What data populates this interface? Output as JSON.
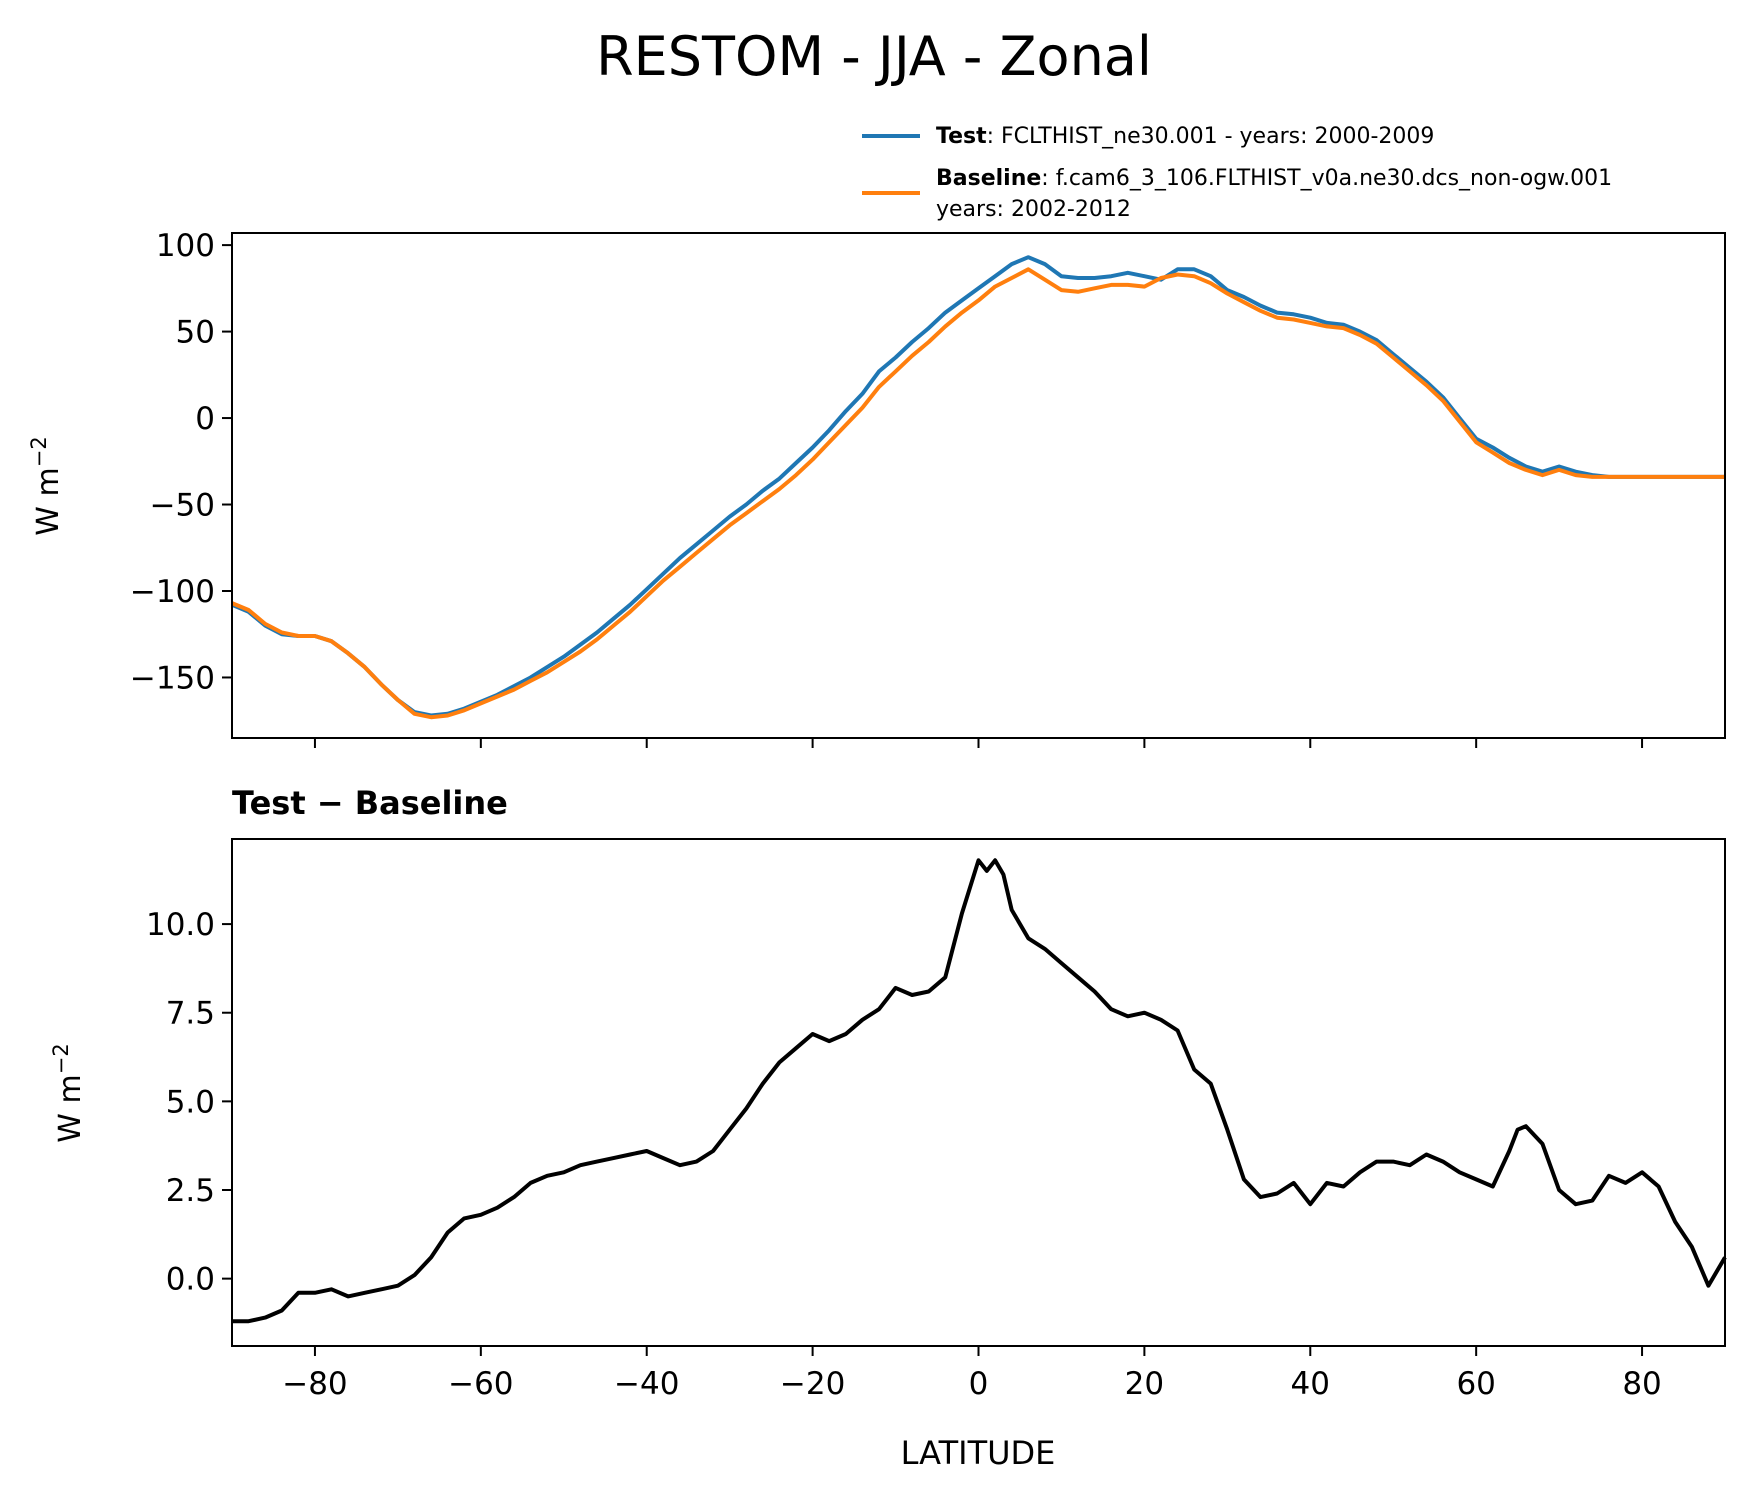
{
  "title": "RESTOM - JJA - Zonal",
  "chart_data": [
    {
      "type": "line",
      "ylabel": "W m",
      "ylabel_sup": "−2",
      "xlim": [
        -90,
        90
      ],
      "ylim": [
        -185,
        107
      ],
      "yticks": [
        100,
        50,
        0,
        -50,
        -100,
        -150
      ],
      "ytick_labels": [
        "100",
        "50",
        "0",
        "−50",
        "−100",
        "−150"
      ],
      "xticks": [
        -80,
        -60,
        -40,
        -20,
        0,
        20,
        40,
        60,
        80
      ],
      "legend": [
        {
          "bold": "Test",
          "text": ": FCLTHIST_ne30.001 - years: 2000-2009",
          "text2": "",
          "color": "#1f77b4"
        },
        {
          "bold": "Baseline",
          "text": ": f.cam6_3_106.FLTHIST_v0a.ne30.dcs_non-ogw.001",
          "text2": "years: 2002-2012",
          "color": "#ff7f0e"
        }
      ],
      "x": [
        -90,
        -88,
        -86,
        -84,
        -82,
        -80,
        -78,
        -76,
        -74,
        -72,
        -70,
        -68,
        -66,
        -64,
        -62,
        -60,
        -58,
        -56,
        -54,
        -52,
        -50,
        -48,
        -46,
        -44,
        -42,
        -40,
        -38,
        -36,
        -34,
        -32,
        -30,
        -28,
        -26,
        -24,
        -22,
        -20,
        -18,
        -16,
        -14,
        -12,
        -10,
        -8,
        -6,
        -4,
        -2,
        0,
        2,
        4,
        6,
        8,
        10,
        12,
        14,
        16,
        18,
        20,
        22,
        24,
        26,
        28,
        30,
        32,
        34,
        36,
        38,
        40,
        42,
        44,
        46,
        48,
        50,
        52,
        54,
        56,
        58,
        60,
        62,
        64,
        66,
        68,
        70,
        72,
        74,
        76,
        78,
        80,
        82,
        84,
        86,
        88,
        90
      ],
      "series": [
        {
          "name": "Test",
          "color": "#1f77b4",
          "values": [
            -108,
            -112,
            -120,
            -125,
            -126,
            -126,
            -129,
            -136,
            -144,
            -154,
            -163,
            -170,
            -172,
            -171,
            -168,
            -164,
            -160,
            -155,
            -150,
            -144,
            -138,
            -131,
            -124,
            -116,
            -108,
            -99,
            -90,
            -81,
            -73,
            -65,
            -57,
            -50,
            -42,
            -35,
            -26,
            -17,
            -7,
            4,
            14,
            27,
            35,
            44,
            52,
            61,
            68,
            75,
            82,
            89,
            93,
            89,
            82,
            81,
            81,
            82,
            84,
            82,
            80,
            86,
            86,
            82,
            74,
            70,
            65,
            61,
            60,
            58,
            55,
            54,
            50,
            45,
            37,
            29,
            21,
            12,
            0,
            -12,
            -17,
            -23,
            -28,
            -31,
            -28,
            -31,
            -33,
            -34,
            -34,
            -34,
            -34,
            -34,
            -34,
            -34,
            -34
          ]
        },
        {
          "name": "Baseline",
          "color": "#ff7f0e",
          "values": [
            -107,
            -111,
            -119,
            -124,
            -126,
            -126,
            -129,
            -136,
            -144,
            -154,
            -163,
            -171,
            -173,
            -172,
            -169,
            -165,
            -161,
            -157,
            -152,
            -147,
            -141,
            -135,
            -128,
            -120,
            -112,
            -103,
            -94,
            -86,
            -78,
            -70,
            -62,
            -55,
            -48,
            -41,
            -33,
            -24,
            -14,
            -4,
            6,
            18,
            27,
            36,
            44,
            53,
            61,
            68,
            76,
            81,
            86,
            80,
            74,
            73,
            75,
            77,
            77,
            76,
            81,
            83,
            82,
            78,
            72,
            67,
            62,
            58,
            57,
            55,
            53,
            52,
            48,
            43,
            35,
            27,
            19,
            10,
            -2,
            -14,
            -20,
            -26,
            -30,
            -33,
            -30,
            -33,
            -34,
            -34,
            -34,
            -34,
            -34,
            -34,
            -34,
            -34,
            -34
          ]
        }
      ]
    },
    {
      "type": "line",
      "title": "Test − Baseline",
      "ylabel": "W m",
      "ylabel_sup": "−2",
      "xlabel": "LATITUDE",
      "xlim": [
        -90,
        90
      ],
      "ylim": [
        -1.9,
        12.4
      ],
      "yticks": [
        10.0,
        7.5,
        5.0,
        2.5,
        0.0
      ],
      "ytick_labels": [
        "10.0",
        "7.5",
        "5.0",
        "2.5",
        "0.0"
      ],
      "xticks": [
        -80,
        -60,
        -40,
        -20,
        0,
        20,
        40,
        60,
        80
      ],
      "xtick_labels": [
        "−80",
        "−60",
        "−40",
        "−20",
        "0",
        "20",
        "40",
        "60",
        "80"
      ],
      "series": [
        {
          "name": "Test − Baseline",
          "color": "#000000",
          "x": [
            -90,
            -88,
            -86,
            -84,
            -82,
            -80,
            -78,
            -76,
            -74,
            -72,
            -70,
            -68,
            -66,
            -64,
            -62,
            -60,
            -58,
            -56,
            -54,
            -52,
            -50,
            -48,
            -46,
            -44,
            -42,
            -40,
            -38,
            -36,
            -34,
            -32,
            -30,
            -28,
            -26,
            -24,
            -22,
            -20,
            -18,
            -16,
            -14,
            -12,
            -10,
            -8,
            -6,
            -4,
            -2,
            0,
            1,
            2,
            3,
            4,
            6,
            8,
            10,
            12,
            14,
            16,
            18,
            20,
            22,
            24,
            26,
            28,
            30,
            32,
            34,
            36,
            38,
            40,
            42,
            44,
            46,
            48,
            50,
            52,
            54,
            56,
            58,
            60,
            62,
            64,
            65,
            66,
            68,
            70,
            72,
            74,
            76,
            78,
            80,
            82,
            84,
            86,
            88,
            90
          ],
          "values": [
            -1.2,
            -1.2,
            -1.1,
            -0.9,
            -0.4,
            -0.4,
            -0.3,
            -0.5,
            -0.4,
            -0.3,
            -0.2,
            0.1,
            0.6,
            1.3,
            1.7,
            1.8,
            2.0,
            2.3,
            2.7,
            2.9,
            3.0,
            3.2,
            3.3,
            3.4,
            3.5,
            3.6,
            3.4,
            3.2,
            3.3,
            3.6,
            4.2,
            4.8,
            5.5,
            6.1,
            6.5,
            6.9,
            6.7,
            6.9,
            7.3,
            7.6,
            8.2,
            8.0,
            8.1,
            8.5,
            10.3,
            11.8,
            11.5,
            11.8,
            11.4,
            10.4,
            9.6,
            9.3,
            8.9,
            8.5,
            8.1,
            7.6,
            7.4,
            7.5,
            7.3,
            7.0,
            5.9,
            5.5,
            4.2,
            2.8,
            2.3,
            2.4,
            2.7,
            2.1,
            2.7,
            2.6,
            3.0,
            3.3,
            3.3,
            3.2,
            3.5,
            3.3,
            3.0,
            2.8,
            2.6,
            3.6,
            4.2,
            4.3,
            3.8,
            2.5,
            2.1,
            2.2,
            2.9,
            2.7,
            3.0,
            2.6,
            1.6,
            0.9,
            -0.2,
            0.6
          ]
        }
      ]
    }
  ]
}
